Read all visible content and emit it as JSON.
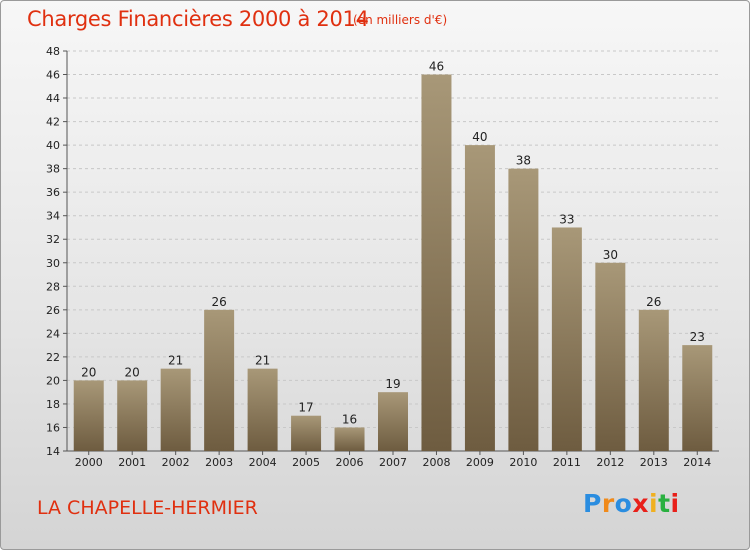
{
  "header": {
    "title": "Charges Financières 2000 à 2014",
    "subtitle": "(en milliers d'€)"
  },
  "footer": {
    "place": "LA CHAPELLE-HERMIER",
    "logo": [
      "P",
      "r",
      "o",
      "x",
      "i",
      "t",
      "i"
    ],
    "logo_colors": [
      "#2a8de0",
      "#f08a1a",
      "#2a8de0",
      "#e8201a",
      "#f0b020",
      "#2ab040",
      "#e8201a"
    ]
  },
  "colors": {
    "bar_top": "#a89878",
    "bar_bottom": "#6e5c40",
    "text_accent": "#e03010"
  },
  "chart_data": {
    "type": "bar",
    "categories": [
      "2000",
      "2001",
      "2002",
      "2003",
      "2004",
      "2005",
      "2006",
      "2007",
      "2008",
      "2009",
      "2010",
      "2011",
      "2012",
      "2013",
      "2014"
    ],
    "values": [
      20,
      20,
      21,
      26,
      21,
      17,
      16,
      19,
      46,
      40,
      38,
      33,
      30,
      26,
      23
    ],
    "title": "Charges Financières 2000 à 2014",
    "ylim": [
      14,
      48
    ],
    "yticks": [
      14,
      16,
      18,
      20,
      22,
      24,
      26,
      28,
      30,
      32,
      34,
      36,
      38,
      40,
      42,
      44,
      46,
      48
    ],
    "grid": true,
    "legend": "none"
  }
}
